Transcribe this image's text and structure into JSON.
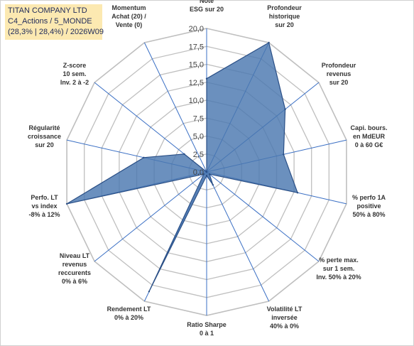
{
  "header": {
    "line1": "TITAN COMPANY LTD",
    "line2": "C4_Actions / 5_MONDE",
    "line3": "(28,3% | 28,4%) / 2026W09"
  },
  "chart_data": {
    "type": "radar",
    "axes": [
      [
        "Note",
        "ESG sur 20"
      ],
      [
        "Profondeur",
        "historique",
        "sur 20"
      ],
      [
        "Profondeur",
        "revenus",
        "sur 20"
      ],
      [
        "Capi. bours.",
        "en MdEUR",
        "0 à 60 G€"
      ],
      [
        "% perfo 1A",
        "positive",
        "50% à 80%"
      ],
      [
        "% perte max.",
        "sur 1 sem.",
        "Inv. 50% à 20%"
      ],
      [
        "Volatilité LT",
        "inversée",
        "40% à 0%"
      ],
      [
        "Ratio Sharpe",
        "0 à 1"
      ],
      [
        "Rendement LT",
        "0% à 20%"
      ],
      [
        "Niveau LT",
        "revenus",
        "reccurents",
        "0% à 6%"
      ],
      [
        "Perfo. LT",
        "vs index",
        "-8% à 12%"
      ],
      [
        "Régularité",
        "croissance",
        "sur 20"
      ],
      [
        "Z-score",
        "10 sem.",
        "Inv. 2 à -2"
      ],
      [
        "Momentum",
        "Achat (20) /",
        "Vente (0)"
      ]
    ],
    "values": [
      13,
      20,
      14,
      11,
      13,
      0.5,
      2,
      0.5,
      18.5,
      0.5,
      20,
      9,
      4,
      0
    ],
    "rmin": 0,
    "rmax": 20,
    "ticks": [
      "0,0",
      "2,5",
      "5,0",
      "7,5",
      "10,0",
      "12,5",
      "15,0",
      "17,5",
      "20,0"
    ],
    "grid": true,
    "colors": {
      "fill": "#4a78b0",
      "stroke": "#2a4f86",
      "spoke": "#3a6fc4",
      "grid": "#bfbfbf"
    }
  }
}
